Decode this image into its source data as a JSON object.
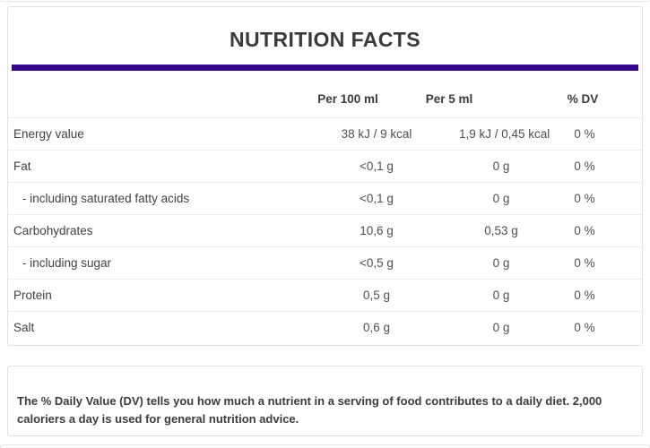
{
  "title": "NUTRITION FACTS",
  "theme": {
    "accent_color": "#38088c",
    "card_border_color": "#e2e2e2",
    "divider_color": "#ededed",
    "text_color": "#3c3c3c"
  },
  "table": {
    "columns": [
      "",
      "Per 100 ml",
      "Per 5 ml",
      "% DV"
    ],
    "rows": [
      {
        "label": "Energy value",
        "per_100ml": "38 kJ / 9 kcal",
        "per_5ml": "1,9 kJ / 0,45 kcal",
        "dv": "0 %",
        "indent": false
      },
      {
        "label": "Fat",
        "per_100ml": "<0,1 g",
        "per_5ml": "0 g",
        "dv": "0 %",
        "indent": false
      },
      {
        "label": "- including saturated fatty acids",
        "per_100ml": "<0,1 g",
        "per_5ml": "0 g",
        "dv": "0 %",
        "indent": true
      },
      {
        "label": "Carbohydrates",
        "per_100ml": "10,6 g",
        "per_5ml": "0,53 g",
        "dv": "0 %",
        "indent": false
      },
      {
        "label": "- including sugar",
        "per_100ml": "<0,5 g",
        "per_5ml": "0 g",
        "dv": "0 %",
        "indent": true
      },
      {
        "label": "Protein",
        "per_100ml": "0,5 g",
        "per_5ml": "0 g",
        "dv": "0 %",
        "indent": false
      },
      {
        "label": "Salt",
        "per_100ml": "0,6 g",
        "per_5ml": "0 g",
        "dv": "0 %",
        "indent": false
      }
    ]
  },
  "footnote": "The % Daily Value (DV) tells you how much a nutrient in a serving of food contributes to a daily diet. 2,000 caloriers a day is used for general nutrition advice."
}
